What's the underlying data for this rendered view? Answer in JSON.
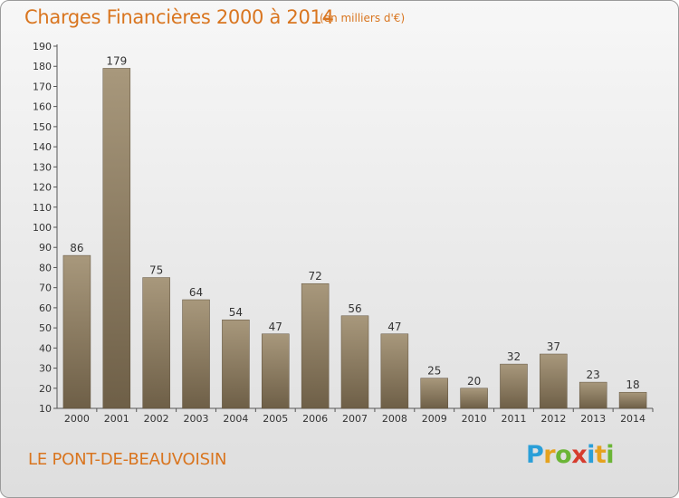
{
  "chart_data": {
    "type": "bar",
    "title": "Charges Financières 2000 à 2014",
    "subtitle": "(en milliers d'€)",
    "categories": [
      "2000",
      "2001",
      "2002",
      "2003",
      "2004",
      "2005",
      "2006",
      "2007",
      "2008",
      "2009",
      "2010",
      "2011",
      "2012",
      "2013",
      "2014"
    ],
    "values": [
      86,
      179,
      75,
      64,
      54,
      47,
      72,
      56,
      47,
      25,
      20,
      32,
      37,
      23,
      18
    ],
    "ylim": [
      10,
      190
    ],
    "yticks": [
      10,
      20,
      30,
      40,
      50,
      60,
      70,
      80,
      90,
      100,
      110,
      120,
      130,
      140,
      150,
      160,
      170,
      180,
      190
    ],
    "grid": false,
    "bar_color": "#8a7a60"
  },
  "location": "LE PONT-DE-BEAUVOISIN",
  "logo": {
    "letters": [
      "P",
      "r",
      "o",
      "x",
      "i",
      "t",
      "i"
    ],
    "colors": [
      "#2a9fd8",
      "#e5a21e",
      "#6bb536",
      "#d63c2e",
      "#2a9fd8",
      "#e5a21e",
      "#6bb536"
    ]
  }
}
